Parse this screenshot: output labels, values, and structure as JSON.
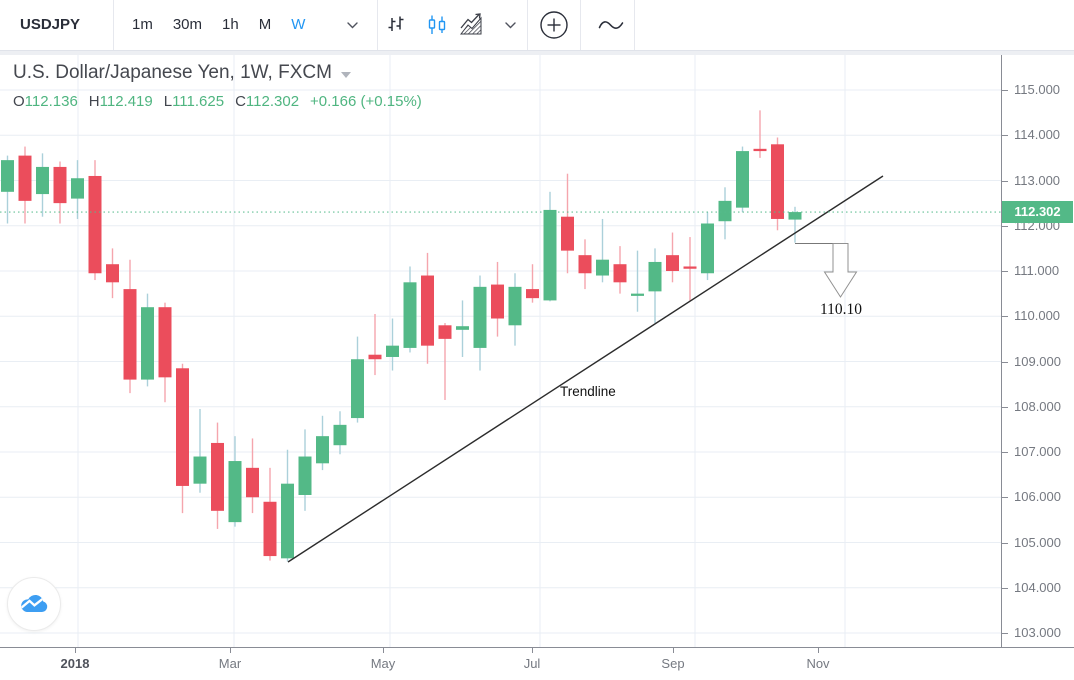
{
  "toolbar": {
    "symbol": "USDJPY",
    "timeframes": [
      "1m",
      "30m",
      "1h",
      "M",
      "W"
    ],
    "active_timeframe": "W",
    "icons": [
      "bars-chart-icon",
      "candles-chart-icon",
      "area-chart-icon",
      "chevron-down-icon",
      "compare-plus-icon",
      "line-tool-icon"
    ]
  },
  "legend": {
    "title": "U.S. Dollar/Japanese Yen, 1W, FXCM",
    "ohlc": {
      "o_label": "O",
      "o_value": "112.136",
      "h_label": "H",
      "h_value": "112.419",
      "l_label": "L",
      "l_value": "111.625",
      "c_label": "C",
      "c_value": "112.302",
      "change": "+0.166 (+0.15%)"
    }
  },
  "chart_data": {
    "type": "candlestick",
    "title": "U.S. Dollar/Japanese Yen, 1W, FXCM",
    "symbol": "USDJPY",
    "timeframe": "1W",
    "exchange": "FXCM",
    "last_price": 112.302,
    "last_price_label": "112.302",
    "ylim": [
      102.75,
      115.78
    ],
    "grid": true,
    "y_axis": {
      "ticks": [
        {
          "label": "115.000",
          "price": 115
        },
        {
          "label": "114.000",
          "price": 114
        },
        {
          "label": "113.000",
          "price": 113
        },
        {
          "label": "112.000",
          "price": 112
        },
        {
          "label": "111.000",
          "price": 111
        },
        {
          "label": "110.000",
          "price": 110
        },
        {
          "label": "109.000",
          "price": 109
        },
        {
          "label": "108.000",
          "price": 108
        },
        {
          "label": "107.000",
          "price": 107
        },
        {
          "label": "106.000",
          "price": 106
        },
        {
          "label": "105.000",
          "price": 105
        },
        {
          "label": "104.000",
          "price": 104
        },
        {
          "label": "103.000",
          "price": 103
        }
      ]
    },
    "x_axis": {
      "labels": [
        {
          "label": "2018",
          "x": 75,
          "bold": true
        },
        {
          "label": "Mar",
          "x": 230,
          "bold": false
        },
        {
          "label": "May",
          "x": 383,
          "bold": false
        },
        {
          "label": "Jul",
          "x": 532,
          "bold": false
        },
        {
          "label": "Sep",
          "x": 673,
          "bold": false
        },
        {
          "label": "Nov",
          "x": 818,
          "bold": false
        }
      ],
      "gridlines_x": [
        78,
        234,
        390,
        540,
        695,
        845
      ]
    },
    "candles": [
      {
        "o": 112.75,
        "h": 113.55,
        "l": 112.05,
        "c": 113.45
      },
      {
        "o": 113.55,
        "h": 113.75,
        "l": 112.05,
        "c": 112.55
      },
      {
        "o": 112.7,
        "h": 113.6,
        "l": 112.2,
        "c": 113.3
      },
      {
        "o": 113.3,
        "h": 113.42,
        "l": 112.05,
        "c": 112.5
      },
      {
        "o": 112.6,
        "h": 113.45,
        "l": 112.15,
        "c": 113.05
      },
      {
        "o": 113.1,
        "h": 113.45,
        "l": 110.8,
        "c": 110.95
      },
      {
        "o": 111.15,
        "h": 111.5,
        "l": 110.4,
        "c": 110.75
      },
      {
        "o": 110.6,
        "h": 111.25,
        "l": 108.3,
        "c": 108.6
      },
      {
        "o": 108.6,
        "h": 110.5,
        "l": 108.45,
        "c": 110.2
      },
      {
        "o": 110.2,
        "h": 110.3,
        "l": 108.1,
        "c": 108.65
      },
      {
        "o": 108.85,
        "h": 108.95,
        "l": 105.65,
        "c": 106.25
      },
      {
        "o": 106.3,
        "h": 107.95,
        "l": 106.1,
        "c": 106.9
      },
      {
        "o": 107.2,
        "h": 107.65,
        "l": 105.3,
        "c": 105.7
      },
      {
        "o": 105.45,
        "h": 107.35,
        "l": 105.35,
        "c": 106.8
      },
      {
        "o": 106.65,
        "h": 107.3,
        "l": 105.65,
        "c": 106.0
      },
      {
        "o": 105.9,
        "h": 106.65,
        "l": 104.6,
        "c": 104.7
      },
      {
        "o": 104.65,
        "h": 107.05,
        "l": 104.58,
        "c": 106.3
      },
      {
        "o": 106.05,
        "h": 107.5,
        "l": 105.7,
        "c": 106.9
      },
      {
        "o": 106.75,
        "h": 107.8,
        "l": 106.6,
        "c": 107.35
      },
      {
        "o": 107.15,
        "h": 107.9,
        "l": 106.95,
        "c": 107.6
      },
      {
        "o": 107.75,
        "h": 109.55,
        "l": 107.65,
        "c": 109.05
      },
      {
        "o": 109.15,
        "h": 110.05,
        "l": 108.7,
        "c": 109.05
      },
      {
        "o": 109.1,
        "h": 109.95,
        "l": 108.8,
        "c": 109.35
      },
      {
        "o": 109.3,
        "h": 111.1,
        "l": 109.2,
        "c": 110.75
      },
      {
        "o": 110.9,
        "h": 111.4,
        "l": 108.95,
        "c": 109.35
      },
      {
        "o": 109.8,
        "h": 109.85,
        "l": 108.15,
        "c": 109.5
      },
      {
        "o": 109.7,
        "h": 110.35,
        "l": 109.1,
        "c": 109.78
      },
      {
        "o": 109.3,
        "h": 110.9,
        "l": 108.8,
        "c": 110.65
      },
      {
        "o": 110.7,
        "h": 111.2,
        "l": 109.55,
        "c": 109.95
      },
      {
        "o": 109.8,
        "h": 110.95,
        "l": 109.35,
        "c": 110.65
      },
      {
        "o": 110.6,
        "h": 111.15,
        "l": 110.3,
        "c": 110.4
      },
      {
        "o": 110.35,
        "h": 112.75,
        "l": 110.33,
        "c": 112.35
      },
      {
        "o": 112.2,
        "h": 113.15,
        "l": 110.95,
        "c": 111.45
      },
      {
        "o": 111.35,
        "h": 111.7,
        "l": 110.6,
        "c": 110.95
      },
      {
        "o": 110.9,
        "h": 112.15,
        "l": 110.75,
        "c": 111.25
      },
      {
        "o": 111.15,
        "h": 111.55,
        "l": 110.5,
        "c": 110.75
      },
      {
        "o": 110.45,
        "h": 111.45,
        "l": 110.1,
        "c": 110.5
      },
      {
        "o": 110.55,
        "h": 111.5,
        "l": 109.85,
        "c": 111.2
      },
      {
        "o": 111.35,
        "h": 111.85,
        "l": 110.75,
        "c": 111.0
      },
      {
        "o": 111.1,
        "h": 111.75,
        "l": 110.35,
        "c": 111.05
      },
      {
        "o": 110.95,
        "h": 112.3,
        "l": 110.8,
        "c": 112.05
      },
      {
        "o": 112.1,
        "h": 112.85,
        "l": 111.7,
        "c": 112.55
      },
      {
        "o": 112.4,
        "h": 113.75,
        "l": 112.3,
        "c": 113.65
      },
      {
        "o": 113.7,
        "h": 114.55,
        "l": 113.5,
        "c": 113.65
      },
      {
        "o": 113.8,
        "h": 113.95,
        "l": 111.9,
        "c": 112.15
      },
      {
        "o": 112.136,
        "h": 112.419,
        "l": 111.625,
        "c": 112.302
      }
    ],
    "annotations": {
      "trendline": {
        "label": "Trendline",
        "x1": 288,
        "y1": 562,
        "x2": 883,
        "y2": 176,
        "label_x": 560,
        "label_y": 384
      },
      "target_arrow": {
        "label": "110.10",
        "from_x": 795,
        "from_y": 243.5,
        "shaft_cx": 840.5,
        "shaft_half_w": 7.5,
        "shaft_bottom_y": 272,
        "head_half_w": 16,
        "tip_y": 297,
        "label_x": 841,
        "label_y": 301
      }
    },
    "colors": {
      "up": "#53b987",
      "down": "#eb4d5c",
      "up_wick": "#abd0da",
      "down_wick": "#f5a5ad",
      "grid": "#e9eef4",
      "last_price_line": "#56bb8c",
      "trendline": "#2c2c2c",
      "arrow_outline": "#919191",
      "accent_blue": "#2196f3"
    }
  }
}
